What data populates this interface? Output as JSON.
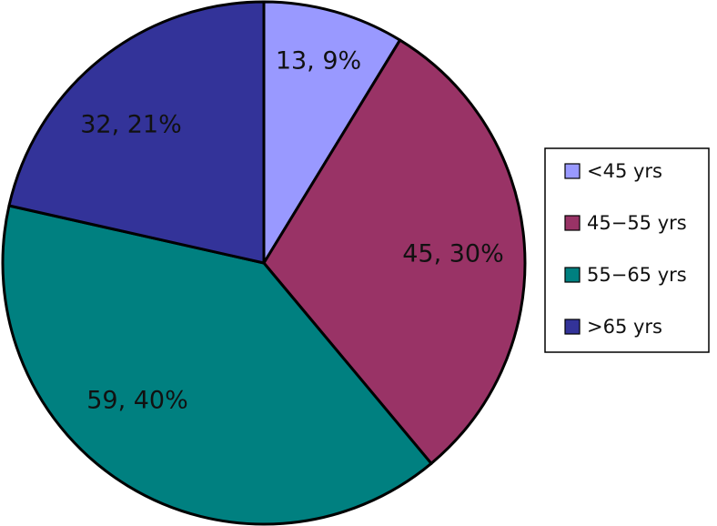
{
  "chart_data": {
    "type": "pie",
    "title": "",
    "start_angle_deg": 0,
    "direction": "clockwise",
    "legend_position": "right",
    "slices": [
      {
        "label": "<45 yrs",
        "value": 13,
        "percent": 9,
        "color": "#9999FF",
        "data_label": "13, 9%"
      },
      {
        "label": "45−55 yrs",
        "value": 45,
        "percent": 30,
        "color": "#993366",
        "data_label": "45, 30%"
      },
      {
        "label": "55−65 yrs",
        "value": 59,
        "percent": 40,
        "color": "#008080",
        "data_label": "59, 40%"
      },
      {
        "label": ">65 yrs",
        "value": 32,
        "percent": 21,
        "color": "#333399",
        "data_label": "32, 21%"
      }
    ]
  }
}
